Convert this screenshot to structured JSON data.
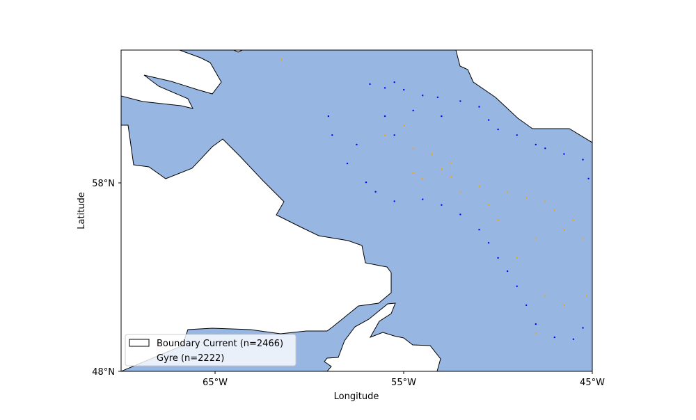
{
  "chart_data": {
    "type": "scatter",
    "projection": "plate-carree",
    "xlabel": "Longitude",
    "ylabel": "Latitude",
    "xlim": [
      -70,
      -45
    ],
    "ylim": [
      48,
      65
    ],
    "x_ticks": [
      -65,
      -55,
      -45
    ],
    "x_tick_labels": [
      "65°W",
      "55°W",
      "45°W"
    ],
    "y_ticks": [
      48,
      58
    ],
    "y_tick_labels": [
      "48°N",
      "58°N"
    ],
    "grid": false,
    "legend_position": "lower-left",
    "ocean_color": "#97b6e1",
    "land_color": "#ffffff",
    "coastline_color": "#000000",
    "series": [
      {
        "name": "Boundary Current (n=2466)",
        "count": 2466,
        "color": "#0000ff",
        "marker_size_pt": 1,
        "sample_points": [
          [
            -56.8,
            63.2
          ],
          [
            -56.0,
            63.0
          ],
          [
            -55.5,
            63.3
          ],
          [
            -55.0,
            62.9
          ],
          [
            -54.0,
            62.6
          ],
          [
            -53.2,
            62.5
          ],
          [
            -52.0,
            62.3
          ],
          [
            -51.0,
            62.0
          ],
          [
            -50.5,
            61.3
          ],
          [
            -50.0,
            60.8
          ],
          [
            -49.0,
            60.5
          ],
          [
            -48.0,
            60.0
          ],
          [
            -47.5,
            59.8
          ],
          [
            -46.5,
            59.5
          ],
          [
            -45.5,
            59.2
          ],
          [
            -45.2,
            58.2
          ],
          [
            -58.8,
            60.5
          ],
          [
            -59.0,
            61.5
          ],
          [
            -57.5,
            60.0
          ],
          [
            -58.0,
            59.0
          ],
          [
            -57.0,
            58.0
          ],
          [
            -56.5,
            57.5
          ],
          [
            -55.5,
            57.0
          ],
          [
            -54.0,
            57.1
          ],
          [
            -53.0,
            56.8
          ],
          [
            -52.0,
            56.3
          ],
          [
            -51.0,
            55.5
          ],
          [
            -50.5,
            54.8
          ],
          [
            -50.0,
            54.0
          ],
          [
            -49.5,
            53.3
          ],
          [
            -49.0,
            52.5
          ],
          [
            -48.5,
            51.5
          ],
          [
            -48.0,
            50.5
          ],
          [
            -47.0,
            49.8
          ],
          [
            -46.0,
            49.7
          ],
          [
            -45.5,
            50.3
          ],
          [
            -56.0,
            61.5
          ],
          [
            -55.5,
            60.5
          ],
          [
            -54.5,
            61.8
          ],
          [
            -53.0,
            61.5
          ]
        ]
      },
      {
        "name": "Gyre (n=2222)",
        "count": 2222,
        "color": "#ffa500",
        "marker_size_pt": 1,
        "sample_points": [
          [
            -61.5,
            64.5
          ],
          [
            -56.0,
            60.5
          ],
          [
            -55.0,
            61.0
          ],
          [
            -54.5,
            58.5
          ],
          [
            -54.0,
            58.2
          ],
          [
            -53.0,
            58.7
          ],
          [
            -52.5,
            58.3
          ],
          [
            -52.0,
            57.5
          ],
          [
            -51.0,
            57.8
          ],
          [
            -50.5,
            56.8
          ],
          [
            -50.0,
            56.0
          ],
          [
            -49.5,
            57.5
          ],
          [
            -48.5,
            57.2
          ],
          [
            -47.5,
            57.0
          ],
          [
            -47.0,
            56.5
          ],
          [
            -46.0,
            56.0
          ],
          [
            -45.5,
            55.0
          ],
          [
            -46.5,
            55.5
          ],
          [
            -48.0,
            55.0
          ],
          [
            -49.0,
            54.0
          ],
          [
            -47.5,
            52.0
          ],
          [
            -46.5,
            51.5
          ],
          [
            -48.0,
            50.0
          ],
          [
            -45.3,
            52.0
          ],
          [
            -53.5,
            59.5
          ],
          [
            -52.5,
            59.0
          ],
          [
            -54.5,
            59.8
          ]
        ]
      }
    ],
    "legend_items": [
      {
        "label": "Boundary Current (n=2466)"
      },
      {
        "label": "Gyre (n=2222)"
      }
    ]
  }
}
